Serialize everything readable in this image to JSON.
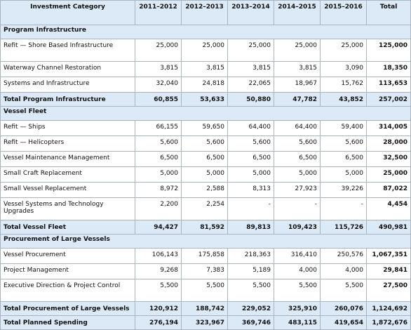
{
  "header": {
    "columns": [
      "Investment Category",
      "2011–2012",
      "2012–2013",
      "2013–2014",
      "2014–2015",
      "2015–2016",
      "Total"
    ]
  },
  "sections": [
    {
      "title": "Program Infrastructure",
      "rows": [
        {
          "label": "Refit — Shore Based Infrastructure",
          "values": [
            "25,000",
            "25,000",
            "25,000",
            "25,000",
            "25,000",
            "125,000"
          ]
        },
        {
          "label": "Waterway Channel Restoration",
          "values": [
            "3,815",
            "3,815",
            "3,815",
            "3,815",
            "3,090",
            "18,350"
          ]
        },
        {
          "label": "Systems and Infrastructure",
          "values": [
            "32,040",
            "24,818",
            "22,065",
            "18,967",
            "15,762",
            "113,653"
          ]
        }
      ],
      "total": {
        "label": "Total Program Infrastructure",
        "values": [
          "60,855",
          "53,633",
          "50,880",
          "47,782",
          "43,852",
          "257,002"
        ]
      }
    },
    {
      "title": "Vessel Fleet",
      "rows": [
        {
          "label": "Refit — Ships",
          "values": [
            "66,155",
            "59,650",
            "64,400",
            "64,400",
            "59,400",
            "314,005"
          ]
        },
        {
          "label": "Refit — Helicopters",
          "values": [
            "5,600",
            "5,600",
            "5,600",
            "5,600",
            "5,600",
            "28,000"
          ]
        },
        {
          "label": "Vessel Maintenance Management",
          "values": [
            "6,500",
            "6,500",
            "6,500",
            "6,500",
            "6,500",
            "32,500"
          ]
        },
        {
          "label": "Small Craft Replacement",
          "values": [
            "5,000",
            "5,000",
            "5,000",
            "5,000",
            "5,000",
            "25,000"
          ]
        },
        {
          "label": "Small Vessel Replacement",
          "values": [
            "8,972",
            "2,588",
            "8,313",
            "27,923",
            "39,226",
            "87,022"
          ]
        },
        {
          "label": "Vessel Systems and Technology Upgrades",
          "values": [
            "2,200",
            "2,254",
            "-",
            "-",
            "-",
            "4,454"
          ]
        }
      ],
      "total": {
        "label": "Total Vessel Fleet",
        "values": [
          "94,427",
          "81,592",
          "89,813",
          "109,423",
          "115,726",
          "490,981"
        ]
      }
    },
    {
      "title": "Procurement of Large Vessels",
      "rows": [
        {
          "label": "Vessel Procurement",
          "values": [
            "106,143",
            "175,858",
            "218,363",
            "316,410",
            "250,576",
            "1,067,351"
          ]
        },
        {
          "label": "Project Management",
          "values": [
            "9,268",
            "7,383",
            "5,189",
            "4,000",
            "4,000",
            "29,841"
          ]
        },
        {
          "label": "Executive Direction & Project Control",
          "values": [
            "5,500",
            "5,500",
            "5,500",
            "5,500",
            "5,500",
            "27,500"
          ]
        }
      ],
      "total": {
        "label": "Total Procurement of Large Vessels",
        "values": [
          "120,912",
          "188,742",
          "229,052",
          "325,910",
          "260,076",
          "1,124,692"
        ]
      }
    }
  ],
  "grand_total": {
    "label": "Total Planned Spending",
    "values": [
      "276,194",
      "323,967",
      "369,746",
      "483,115",
      "419,654",
      "1,872,676"
    ]
  }
}
